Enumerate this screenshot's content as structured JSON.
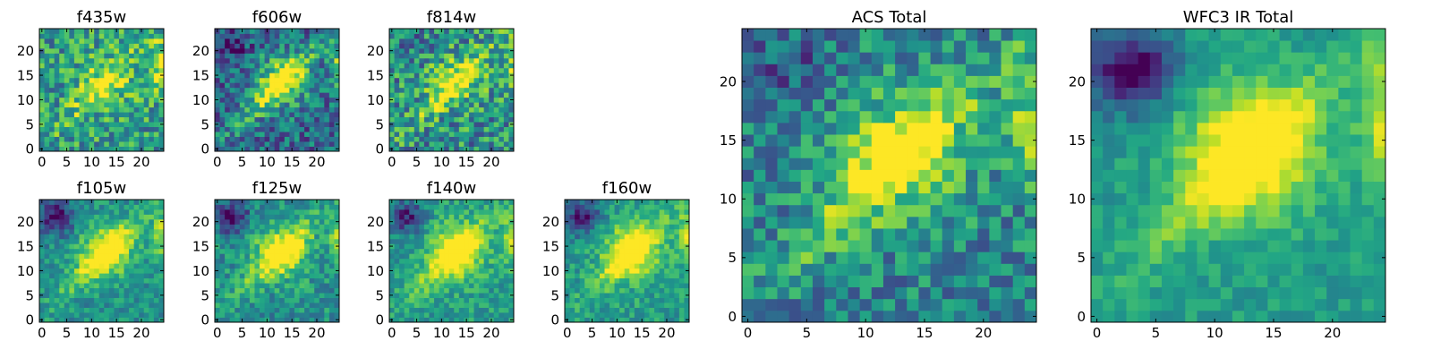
{
  "colormap": "viridis",
  "chart_data": [
    {
      "type": "heatmap",
      "title": "f435w",
      "xlim": [
        0,
        25
      ],
      "ylim": [
        0,
        25
      ],
      "xticks": [
        0,
        5,
        10,
        15,
        20
      ],
      "yticks": [
        0,
        5,
        10,
        15,
        20
      ],
      "grid": false,
      "pattern": {
        "blob_strength": 0.25,
        "diag_strength": 0.25,
        "noise": 0.55,
        "base": 0.55,
        "dark_patch": 0.05,
        "seed": 11
      }
    },
    {
      "type": "heatmap",
      "title": "f606w",
      "xlim": [
        0,
        25
      ],
      "ylim": [
        0,
        25
      ],
      "xticks": [
        0,
        5,
        10,
        15,
        20
      ],
      "yticks": [
        0,
        5,
        10,
        15,
        20
      ],
      "grid": false,
      "pattern": {
        "blob_strength": 0.45,
        "diag_strength": 0.45,
        "noise": 0.5,
        "base": 0.35,
        "dark_patch": 0.25,
        "seed": 23
      }
    },
    {
      "type": "heatmap",
      "title": "f814w",
      "xlim": [
        0,
        25
      ],
      "ylim": [
        0,
        25
      ],
      "xticks": [
        0,
        5,
        10,
        15,
        20
      ],
      "yticks": [
        0,
        5,
        10,
        15,
        20
      ],
      "grid": false,
      "pattern": {
        "blob_strength": 0.3,
        "diag_strength": 0.3,
        "noise": 0.6,
        "base": 0.5,
        "dark_patch": 0.1,
        "seed": 37
      }
    },
    {
      "type": "heatmap",
      "title": "f105w",
      "xlim": [
        0,
        25
      ],
      "ylim": [
        0,
        25
      ],
      "xticks": [
        0,
        5,
        10,
        15,
        20
      ],
      "yticks": [
        0,
        5,
        10,
        15,
        20
      ],
      "grid": false,
      "pattern": {
        "blob_strength": 0.45,
        "diag_strength": 0.35,
        "noise": 0.3,
        "base": 0.5,
        "dark_patch": 0.5,
        "seed": 41
      }
    },
    {
      "type": "heatmap",
      "title": "f125w",
      "xlim": [
        0,
        25
      ],
      "ylim": [
        0,
        25
      ],
      "xticks": [
        0,
        5,
        10,
        15,
        20
      ],
      "yticks": [
        0,
        5,
        10,
        15,
        20
      ],
      "grid": false,
      "pattern": {
        "blob_strength": 0.45,
        "diag_strength": 0.3,
        "noise": 0.35,
        "base": 0.5,
        "dark_patch": 0.45,
        "seed": 53
      }
    },
    {
      "type": "heatmap",
      "title": "f140w",
      "xlim": [
        0,
        25
      ],
      "ylim": [
        0,
        25
      ],
      "xticks": [
        0,
        5,
        10,
        15,
        20
      ],
      "yticks": [
        0,
        5,
        10,
        15,
        20
      ],
      "grid": false,
      "pattern": {
        "blob_strength": 0.5,
        "diag_strength": 0.3,
        "noise": 0.3,
        "base": 0.55,
        "dark_patch": 0.45,
        "seed": 67
      }
    },
    {
      "type": "heatmap",
      "title": "f160w",
      "xlim": [
        0,
        25
      ],
      "ylim": [
        0,
        25
      ],
      "xticks": [
        0,
        5,
        10,
        15,
        20
      ],
      "yticks": [
        0,
        5,
        10,
        15,
        20
      ],
      "grid": false,
      "pattern": {
        "blob_strength": 0.5,
        "diag_strength": 0.3,
        "noise": 0.3,
        "base": 0.55,
        "dark_patch": 0.5,
        "seed": 79
      }
    },
    {
      "type": "heatmap",
      "title": "ACS Total",
      "xlim": [
        0,
        25
      ],
      "ylim": [
        0,
        25
      ],
      "xticks": [
        0,
        5,
        10,
        15,
        20
      ],
      "yticks": [
        0,
        5,
        10,
        15,
        20
      ],
      "grid": false,
      "pattern": {
        "blob_strength": 0.4,
        "diag_strength": 0.4,
        "noise": 0.45,
        "base": 0.45,
        "dark_patch": 0.2,
        "seed": 97
      }
    },
    {
      "type": "heatmap",
      "title": "WFC3 IR Total",
      "xlim": [
        0,
        25
      ],
      "ylim": [
        0,
        25
      ],
      "xticks": [
        0,
        5,
        10,
        15,
        20
      ],
      "yticks": [
        0,
        5,
        10,
        15,
        20
      ],
      "grid": false,
      "pattern": {
        "blob_strength": 0.55,
        "diag_strength": 0.3,
        "noise": 0.2,
        "base": 0.55,
        "dark_patch": 0.6,
        "seed": 113
      }
    }
  ]
}
